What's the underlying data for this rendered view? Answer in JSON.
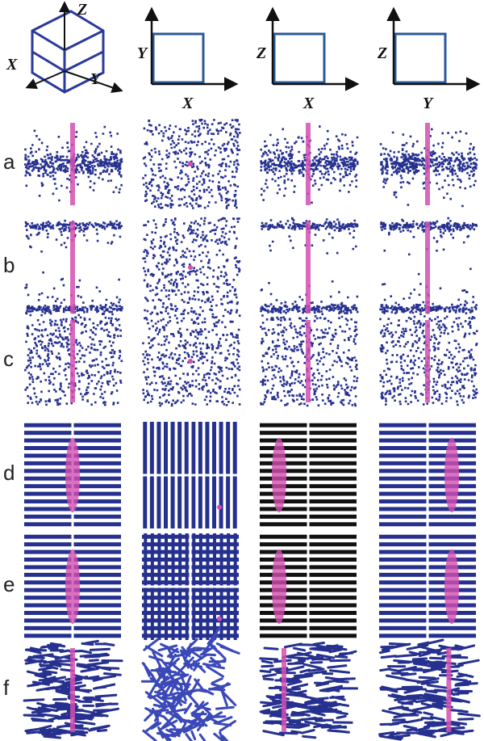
{
  "header": {
    "panels": [
      {
        "axes": [
          "Z",
          "X",
          "Y"
        ]
      },
      {
        "axes": [
          "Y",
          "X"
        ]
      },
      {
        "axes": [
          "Z",
          "X"
        ]
      },
      {
        "axes": [
          "Z",
          "Y"
        ]
      }
    ]
  },
  "rows": [
    {
      "label": "a"
    },
    {
      "label": "b"
    },
    {
      "label": "c"
    },
    {
      "label": "d"
    },
    {
      "label": "e"
    },
    {
      "label": "f"
    }
  ]
}
